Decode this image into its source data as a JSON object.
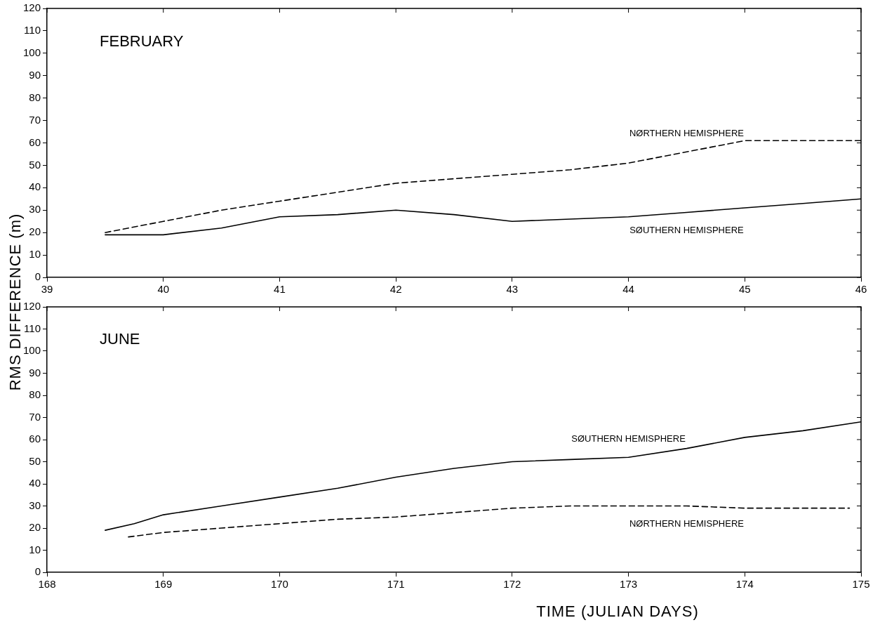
{
  "chart_data": [
    {
      "type": "line",
      "title": "FEBRUARY",
      "ylabel": "RMS DIFFERENCE (m)",
      "xlim": [
        39,
        46
      ],
      "xticks": [
        39,
        40,
        41,
        42,
        43,
        44,
        45,
        46
      ],
      "ylim": [
        0,
        120
      ],
      "yticks": [
        0,
        10,
        20,
        30,
        40,
        50,
        60,
        70,
        80,
        90,
        100,
        110,
        120
      ],
      "grid": false,
      "legend": false,
      "marker": "none",
      "x": [
        39.5,
        40,
        40.5,
        41,
        41.5,
        42,
        42.5,
        43,
        43.5,
        44,
        44.5,
        45,
        45.5,
        46
      ],
      "series": [
        {
          "name": "NØRTHERN HEMISPHERE",
          "color": "#000000",
          "line_style": "dashed",
          "values": [
            20,
            25,
            30,
            34,
            38,
            42,
            44,
            46,
            48,
            51,
            56,
            61,
            61,
            61
          ]
        },
        {
          "name": "SØUTHERN HEMISPHERE",
          "color": "#000000",
          "line_style": "solid",
          "values": [
            19,
            19,
            22,
            27,
            28,
            30,
            28,
            25,
            26,
            27,
            29,
            31,
            33,
            35
          ]
        }
      ]
    },
    {
      "type": "line",
      "title": "JUNE",
      "xlabel": "TIME (JULIAN DAYS)",
      "xlim": [
        168,
        175
      ],
      "xticks": [
        168,
        169,
        170,
        171,
        172,
        173,
        174,
        175
      ],
      "ylim": [
        0,
        120
      ],
      "yticks": [
        0,
        10,
        20,
        30,
        40,
        50,
        60,
        70,
        80,
        90,
        100,
        110,
        120
      ],
      "grid": false,
      "legend": false,
      "marker": "none",
      "series": [
        {
          "name": "SØUTHERN HEMISPHERE",
          "color": "#000000",
          "line_style": "solid",
          "x": [
            168.5,
            168.75,
            169,
            169.5,
            170,
            170.5,
            171,
            171.5,
            172,
            172.5,
            173,
            173.5,
            174,
            174.5,
            175
          ],
          "values": [
            19,
            22,
            26,
            30,
            34,
            38,
            43,
            47,
            50,
            51,
            52,
            56,
            61,
            64,
            68
          ]
        },
        {
          "name": "NØRTHERN HEMISPHERE",
          "color": "#000000",
          "line_style": "dashed",
          "x": [
            168.7,
            169,
            169.5,
            170,
            170.5,
            171,
            171.5,
            172,
            172.5,
            173,
            173.5,
            174,
            174.5,
            174.9
          ],
          "values": [
            16,
            18,
            20,
            22,
            24,
            25,
            27,
            29,
            30,
            30,
            30,
            29,
            29,
            29
          ]
        }
      ]
    }
  ]
}
